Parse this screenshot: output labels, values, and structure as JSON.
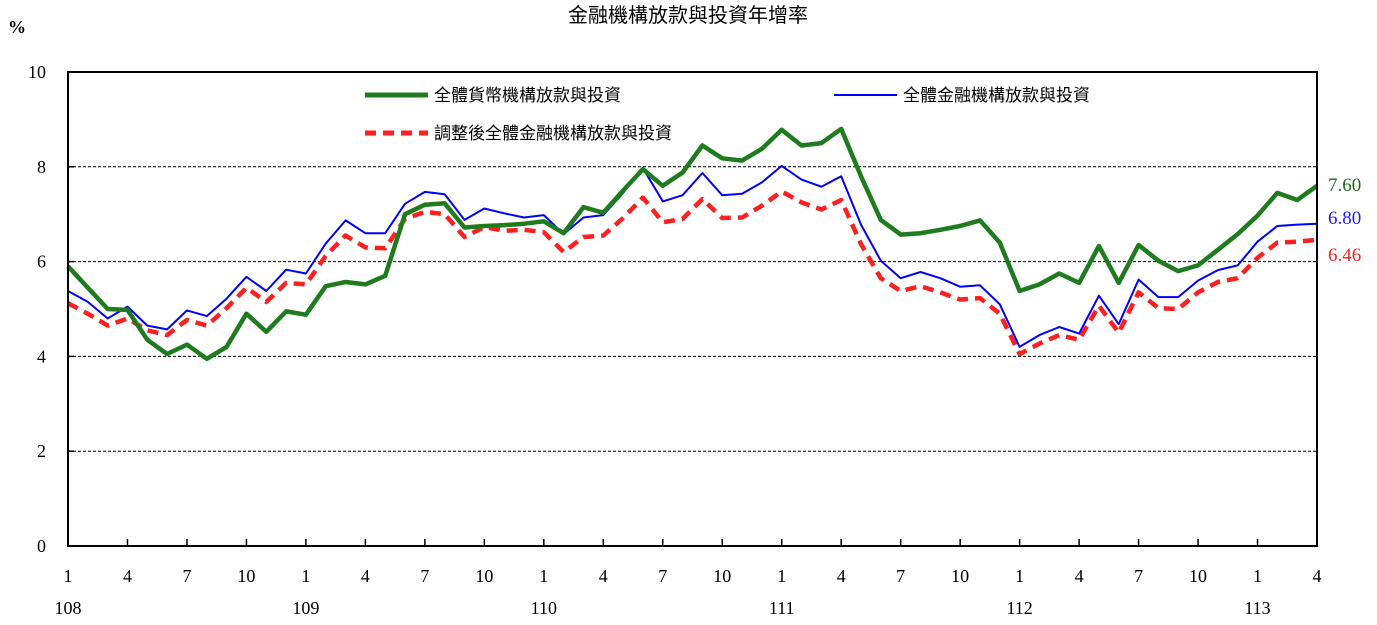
{
  "chart_data": {
    "type": "line",
    "title": "金融機構放款與投資年增率",
    "ylabel": "%",
    "ylim": [
      0,
      10
    ],
    "yticks": [
      0,
      2,
      4,
      6,
      8,
      10
    ],
    "grid_y": [
      2,
      4,
      6,
      8
    ],
    "x_month_ticks": [
      "1",
      "4",
      "7",
      "10",
      "1",
      "4",
      "7",
      "10",
      "1",
      "4",
      "7",
      "10",
      "1",
      "4",
      "7",
      "10",
      "1",
      "4",
      "7",
      "10",
      "1",
      "4"
    ],
    "x_year_labels": [
      "108",
      "109",
      "110",
      "111",
      "112",
      "113"
    ],
    "x_start": "108-01",
    "x_end": "113-04",
    "legend_placement": "top",
    "series": [
      {
        "name": "全體貨幣機構放款與投資",
        "color": "#1e7b1e",
        "style": "solid-thick",
        "end_label": "7.60",
        "values": [
          5.9,
          5.45,
          5.0,
          4.98,
          4.35,
          4.05,
          4.25,
          3.95,
          4.2,
          4.9,
          4.52,
          4.95,
          4.88,
          5.48,
          5.57,
          5.52,
          5.7,
          7.0,
          7.2,
          7.23,
          6.72,
          6.75,
          6.77,
          6.8,
          6.85,
          6.6,
          7.15,
          7.03,
          7.5,
          7.95,
          7.6,
          7.88,
          8.45,
          8.18,
          8.13,
          8.38,
          8.78,
          8.45,
          8.5,
          8.8,
          7.8,
          6.88,
          6.57,
          6.6,
          6.67,
          6.75,
          6.87,
          6.4,
          5.38,
          5.52,
          5.75,
          5.55,
          6.33,
          5.55,
          6.35,
          6.02,
          5.8,
          5.92,
          6.25,
          6.58,
          6.97,
          7.45,
          7.3,
          7.6
        ]
      },
      {
        "name": "全體金融機構放款與投資",
        "color": "#0000ff",
        "style": "solid-thin",
        "end_label": "6.80",
        "values": [
          5.38,
          5.15,
          4.8,
          5.05,
          4.65,
          4.57,
          4.97,
          4.85,
          5.22,
          5.68,
          5.38,
          5.83,
          5.75,
          6.38,
          6.87,
          6.6,
          6.6,
          7.22,
          7.47,
          7.42,
          6.88,
          7.12,
          7.02,
          6.93,
          6.98,
          6.58,
          6.93,
          6.98,
          7.45,
          7.97,
          7.27,
          7.4,
          7.87,
          7.4,
          7.43,
          7.67,
          8.02,
          7.73,
          7.58,
          7.8,
          6.78,
          6.02,
          5.65,
          5.78,
          5.65,
          5.47,
          5.5,
          5.1,
          4.2,
          4.45,
          4.62,
          4.48,
          5.28,
          4.68,
          5.62,
          5.25,
          5.25,
          5.6,
          5.82,
          5.92,
          6.42,
          6.75,
          6.78,
          6.8
        ]
      },
      {
        "name": "調整後全體金融機構放款與投資",
        "color": "#ff1f1f",
        "style": "dashed-thick",
        "end_label": "6.46",
        "values": [
          5.12,
          4.9,
          4.65,
          4.8,
          4.55,
          4.45,
          4.77,
          4.65,
          5.02,
          5.45,
          5.15,
          5.55,
          5.52,
          6.12,
          6.55,
          6.3,
          6.28,
          6.9,
          7.05,
          7.0,
          6.52,
          6.73,
          6.65,
          6.67,
          6.62,
          6.2,
          6.52,
          6.55,
          6.92,
          7.35,
          6.83,
          6.9,
          7.32,
          6.92,
          6.93,
          7.18,
          7.48,
          7.25,
          7.1,
          7.3,
          6.37,
          5.65,
          5.38,
          5.48,
          5.35,
          5.2,
          5.23,
          4.9,
          4.05,
          4.27,
          4.45,
          4.35,
          5.07,
          4.5,
          5.35,
          5.02,
          5.0,
          5.35,
          5.57,
          5.65,
          6.08,
          6.4,
          6.42,
          6.46
        ]
      }
    ]
  }
}
